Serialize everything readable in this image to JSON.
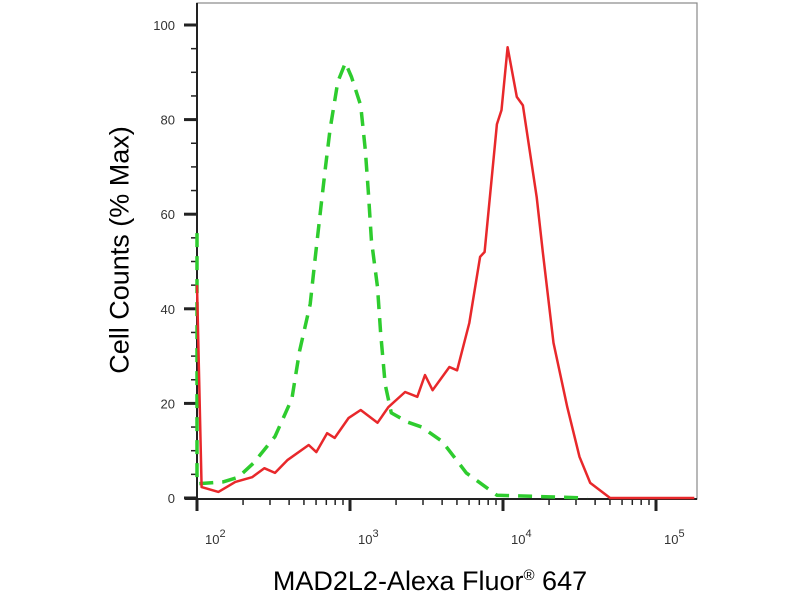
{
  "chart_data": {
    "type": "line",
    "title": "",
    "xlabel": "MAD2L2-Alexa Fluor",
    "xlabel_superscript": "®",
    "xlabel_suffix": " 647",
    "ylabel": "Cell Counts (% Max)",
    "x_scale": "log",
    "xlim_log10": [
      2,
      5.25
    ],
    "ylim": [
      0,
      100
    ],
    "grid": false,
    "legend": "none",
    "y_ticks": [
      "0",
      "20",
      "40",
      "60",
      "80",
      "100"
    ],
    "x_ticks": [
      {
        "base": "10",
        "exp": "2"
      },
      {
        "base": "10",
        "exp": "3"
      },
      {
        "base": "10",
        "exp": "4"
      },
      {
        "base": "10",
        "exp": "5"
      }
    ],
    "series": [
      {
        "style": "dashed",
        "color": "#2ecc2e",
        "points_log10x_y": [
          [
            2.0,
            56
          ],
          [
            2.0,
            3
          ],
          [
            2.17,
            3.4
          ],
          [
            2.27,
            4.4
          ],
          [
            2.37,
            7.4
          ],
          [
            2.51,
            13
          ],
          [
            2.62,
            21
          ],
          [
            2.67,
            31
          ],
          [
            2.74,
            41
          ],
          [
            2.77,
            50
          ],
          [
            2.81,
            61.5
          ],
          [
            2.84,
            70
          ],
          [
            2.87,
            78
          ],
          [
            2.92,
            88
          ],
          [
            2.97,
            92
          ],
          [
            3.01,
            89
          ],
          [
            3.07,
            83
          ],
          [
            3.1,
            73.6
          ],
          [
            3.12,
            64.5
          ],
          [
            3.14,
            54.5
          ],
          [
            3.18,
            44.6
          ],
          [
            3.2,
            35
          ],
          [
            3.23,
            24
          ],
          [
            3.27,
            18
          ],
          [
            3.38,
            16
          ],
          [
            3.47,
            15
          ],
          [
            3.6,
            12
          ],
          [
            3.63,
            10.8
          ],
          [
            3.76,
            5.3
          ],
          [
            3.96,
            0.6
          ],
          [
            4.55,
            0
          ]
        ]
      },
      {
        "style": "solid",
        "color": "#e8282b",
        "points_log10x_y": [
          [
            2.0,
            45
          ],
          [
            2.03,
            2.3
          ],
          [
            2.14,
            1.3
          ],
          [
            2.25,
            3.4
          ],
          [
            2.36,
            4.4
          ],
          [
            2.44,
            6.3
          ],
          [
            2.51,
            5.3
          ],
          [
            2.59,
            8
          ],
          [
            2.73,
            11.2
          ],
          [
            2.78,
            9.7
          ],
          [
            2.85,
            13.7
          ],
          [
            2.9,
            12.7
          ],
          [
            2.99,
            16.9
          ],
          [
            3.07,
            18.6
          ],
          [
            3.18,
            15.9
          ],
          [
            3.25,
            19.2
          ],
          [
            3.36,
            22.4
          ],
          [
            3.44,
            21.4
          ],
          [
            3.49,
            26
          ],
          [
            3.54,
            22.8
          ],
          [
            3.65,
            27.7
          ],
          [
            3.7,
            27
          ],
          [
            3.78,
            37
          ],
          [
            3.85,
            51
          ],
          [
            3.88,
            52
          ],
          [
            3.96,
            79
          ],
          [
            3.99,
            82
          ],
          [
            4.03,
            95.3
          ],
          [
            4.09,
            84.8
          ],
          [
            4.13,
            83
          ],
          [
            4.22,
            63.6
          ],
          [
            4.26,
            52
          ],
          [
            4.33,
            32.8
          ],
          [
            4.42,
            19.2
          ],
          [
            4.5,
            8.7
          ],
          [
            4.57,
            3.2
          ],
          [
            4.7,
            0
          ],
          [
            5.25,
            0
          ]
        ]
      }
    ]
  }
}
